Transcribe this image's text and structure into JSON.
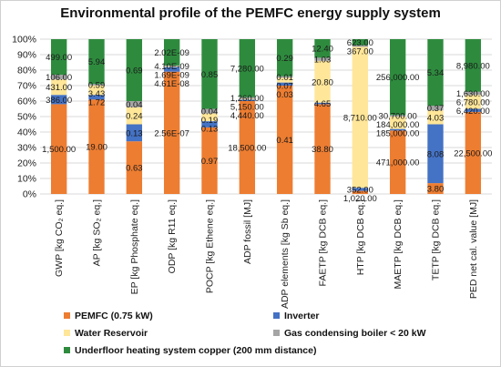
{
  "chart_data": {
    "type": "bar",
    "stacked": "percent",
    "title": "Environmental profile of the PEMFC energy supply system",
    "ylim": [
      0,
      100
    ],
    "y_ticks": [
      "0%",
      "10%",
      "20%",
      "30%",
      "40%",
      "50%",
      "60%",
      "70%",
      "80%",
      "90%",
      "100%"
    ],
    "grid": true,
    "legend_position": "bottom",
    "categories": [
      "GWP [kg CO₂ eq.]",
      "AP [kg SO₂ eq.]",
      "EP [kg Phosphate eq.]",
      "ODP [kg R11 eq.]",
      "POCP [kg Ethene eq.]",
      "ADP fossil [MJ]",
      "ADP elements [kg Sb eq.]",
      "FAETP [kg DCB eq.]",
      "HTP [kg DCB eq.]",
      "MAETP [kg DCB eq.]",
      "TETP [kg DCB eq.]",
      "PED net cal. value [MJ]"
    ],
    "series": [
      {
        "name": "PEMFC (0.75 kW)",
        "color": "#ed7d31",
        "percent": [
          58,
          61,
          34,
          79,
          43,
          60,
          70,
          58,
          2,
          41,
          7,
          53
        ],
        "labels": [
          "1,500.00",
          "19.00",
          "0.63",
          "2.56E-07",
          "0.97",
          "18,500.00",
          "0.41",
          "38.80",
          "1,020.00",
          "471,000.00",
          "3.80",
          "22,500.00"
        ]
      },
      {
        "name": "Inverter",
        "color": "#4472c4",
        "percent": [
          6,
          3,
          11,
          3,
          4,
          1,
          2,
          1,
          2,
          1,
          38,
          2
        ],
        "labels": [
          "386.00",
          "1.72",
          "0.13",
          "4.61E-08",
          "0.13",
          "4,440.00",
          "0.03",
          "4.65",
          "352.00",
          "185,000.00",
          "8.08",
          "6,420.00"
        ]
      },
      {
        "name": "Water Reservoir",
        "color": "#ffe699",
        "percent": [
          10,
          6,
          11,
          0.5,
          5,
          0.5,
          3,
          27,
          91,
          8,
          9,
          9
        ],
        "labels": [
          "431.00",
          "3.43",
          "0.24",
          "1.69E-09",
          "0.19",
          "5,150.00",
          "0.07",
          "20.80",
          "8,710.00",
          "184,000.00",
          "4.03",
          "6,780.00"
        ]
      },
      {
        "name": "Gas condensing boiler < 20 kW",
        "color": "#a5a5a5",
        "percent": [
          3,
          1,
          4,
          0.5,
          3,
          1,
          1,
          2,
          1,
          1,
          3,
          2
        ],
        "labels": [
          "106.00",
          "0.59",
          "0.04",
          "4.10E-09",
          "0.04",
          "1,260.00",
          "0.01",
          "1.03",
          "367.00",
          "30,700.00",
          "0.37",
          "1,630.00"
        ]
      },
      {
        "name": "Underfloor heating system copper (200 mm distance)",
        "color": "#2e8b3e",
        "percent": [
          23,
          29,
          40,
          17,
          45,
          37.5,
          24,
          12,
          4,
          49,
          43,
          34
        ],
        "labels": [
          "499.00",
          "5.94",
          "0.69",
          "2.02E-09",
          "0.85",
          "7,280.00",
          "0.29",
          "12.40",
          "623.00",
          "256,000.00",
          "5.34",
          "8,980.00"
        ]
      }
    ]
  }
}
